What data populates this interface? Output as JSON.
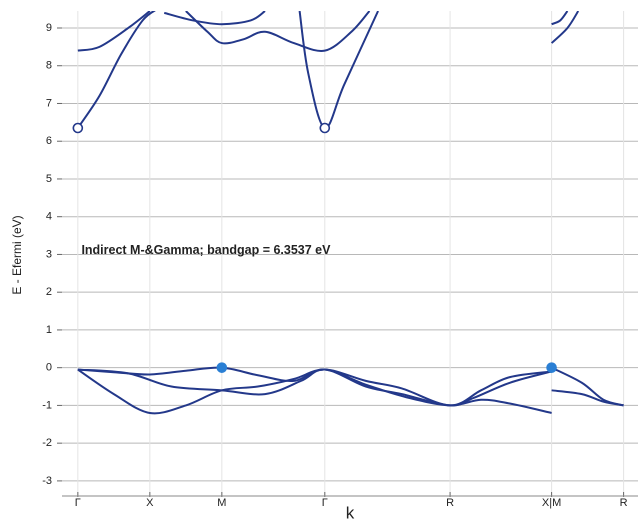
{
  "chart_data": {
    "type": "line",
    "ylabel": "E - Efermi (eV)",
    "xlabel": "k",
    "annotation": {
      "text": "Indirect M-&Gamma; bandgap = 6.3537 eV",
      "x": 0.05,
      "y": 3.1
    },
    "xlim": [
      -0.22,
      7.78
    ],
    "ylim": [
      -3.4,
      9.45
    ],
    "yticks": [
      -3,
      -2,
      -1,
      0,
      1,
      2,
      3,
      4,
      5,
      6,
      7,
      8,
      9
    ],
    "xticks": [
      {
        "value": 0,
        "label": "Γ"
      },
      {
        "value": 1,
        "label": "X"
      },
      {
        "value": 2,
        "label": "M"
      },
      {
        "value": 3.43,
        "label": "Γ"
      },
      {
        "value": 5.17,
        "label": "R"
      },
      {
        "value": 6.58,
        "label": "X|M"
      },
      {
        "value": 7.58,
        "label": "R"
      }
    ],
    "grid": true,
    "series": [
      {
        "color": "#23388a",
        "x": [
          0,
          0.5,
          1,
          1.5,
          2,
          2.5,
          3,
          3.43,
          4,
          4.5,
          5.17,
          5.5,
          6,
          6.58
        ],
        "values": [
          -0.05,
          -0.12,
          -0.18,
          -0.08,
          0,
          -0.2,
          -0.35,
          -0.05,
          -0.5,
          -0.7,
          -1.0,
          -0.8,
          -0.4,
          -0.1
        ]
      },
      {
        "color": "#23388a",
        "x": [
          0,
          0.5,
          1,
          1.5,
          2,
          2.5,
          3,
          3.43,
          4,
          4.5,
          5.17,
          5.6,
          6,
          6.58
        ],
        "values": [
          -0.05,
          -0.7,
          -1.2,
          -1.0,
          -0.6,
          -0.5,
          -0.3,
          -0.05,
          -0.35,
          -0.55,
          -1.0,
          -0.6,
          -0.25,
          -0.1
        ]
      },
      {
        "color": "#23388a",
        "x": [
          0,
          0.7,
          1.3,
          2,
          2.6,
          3.1,
          3.43,
          4,
          4.6,
          5.17,
          5.6,
          6,
          6.58
        ],
        "values": [
          -0.05,
          -0.15,
          -0.5,
          -0.6,
          -0.7,
          -0.35,
          -0.05,
          -0.45,
          -0.8,
          -1.0,
          -0.85,
          -0.95,
          -1.2
        ]
      },
      {
        "color": "#23388a",
        "x": [
          6.58,
          7,
          7.3,
          7.58
        ],
        "values": [
          0,
          -0.4,
          -0.85,
          -1.0
        ]
      },
      {
        "color": "#23388a",
        "x": [
          6.58,
          7,
          7.3,
          7.58
        ],
        "values": [
          -0.6,
          -0.7,
          -0.9,
          -1.0
        ]
      },
      {
        "color": "#23388a",
        "x": [
          0,
          0.3,
          0.6,
          0.9,
          1.1
        ],
        "values": [
          6.35,
          7.2,
          8.3,
          9.2,
          9.5
        ]
      },
      {
        "color": "#23388a",
        "x": [
          0,
          0.3,
          0.7,
          1
        ],
        "values": [
          8.4,
          8.5,
          9.0,
          9.45
        ]
      },
      {
        "color": "#23388a",
        "x": [
          1.2,
          1.6,
          2,
          2.4,
          2.6
        ],
        "values": [
          9.4,
          9.2,
          9.1,
          9.2,
          9.45
        ]
      },
      {
        "color": "#23388a",
        "x": [
          1.5,
          1.8,
          2,
          2.3,
          2.6,
          3,
          3.43,
          3.8,
          4.05
        ],
        "values": [
          9.45,
          8.9,
          8.6,
          8.7,
          8.9,
          8.6,
          8.4,
          8.9,
          9.45
        ]
      },
      {
        "color": "#23388a",
        "x": [
          3.08,
          3.2,
          3.43,
          3.7,
          4.17
        ],
        "values": [
          9.45,
          7.8,
          6.35,
          7.5,
          9.45
        ]
      },
      {
        "color": "#23388a",
        "x": [
          6.58,
          6.8,
          6.95
        ],
        "values": [
          8.6,
          9.0,
          9.45
        ]
      },
      {
        "color": "#23388a",
        "x": [
          6.58,
          6.7,
          6.8
        ],
        "values": [
          9.1,
          9.2,
          9.45
        ]
      }
    ],
    "cbm": {
      "color": "#2a7fd4",
      "x": [
        0,
        3.43
      ],
      "values": [
        6.35,
        6.35
      ]
    },
    "vbm": {
      "color": "#2a7fd4",
      "x": [
        2,
        6.58
      ],
      "values": [
        0,
        0
      ]
    }
  }
}
